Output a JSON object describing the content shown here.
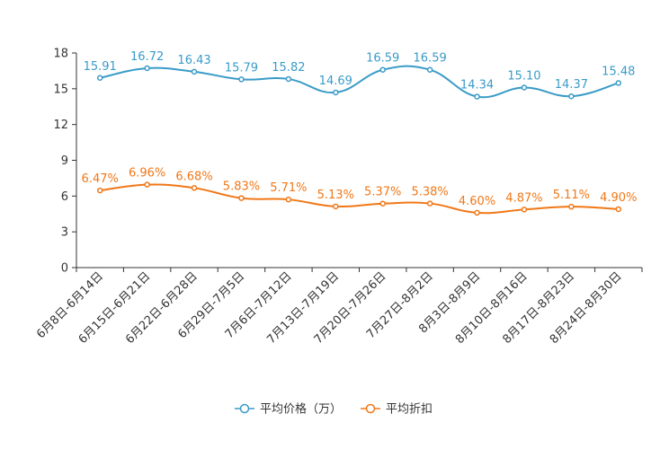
{
  "chart_data": {
    "type": "line",
    "title": "",
    "xlabel": "",
    "ylabel": "",
    "ylim": [
      0,
      18
    ],
    "yticks": [
      0,
      3,
      6,
      9,
      12,
      15,
      18
    ],
    "grid": false,
    "legend_position": "bottom",
    "categories": [
      "6月8日-6月14日",
      "6月15日-6月21日",
      "6月22日-6月28日",
      "6月29日-7月5日",
      "7月6日-7月12日",
      "7月13日-7月19日",
      "7月20日-7月26日",
      "7月27日-8月2日",
      "8月3日-8月9日",
      "8月10日-8月16日",
      "8月17日-8月23日",
      "8月24日-8月30日"
    ],
    "series": [
      {
        "name": "平均价格（万）",
        "color": "#3a9bc8",
        "values": [
          15.91,
          16.72,
          16.43,
          15.79,
          15.82,
          14.69,
          16.59,
          16.59,
          14.34,
          15.1,
          14.37,
          15.48
        ],
        "labels": [
          "15.91",
          "16.72",
          "16.43",
          "15.79",
          "15.82",
          "14.69",
          "16.59",
          "16.59",
          "14.34",
          "15.10",
          "14.37",
          "15.48"
        ]
      },
      {
        "name": "平均折扣",
        "color": "#f07818",
        "values": [
          6.47,
          6.96,
          6.68,
          5.83,
          5.71,
          5.13,
          5.37,
          5.38,
          4.6,
          4.87,
          5.11,
          4.9
        ],
        "labels": [
          "6.47%",
          "6.96%",
          "6.68%",
          "5.83%",
          "5.71%",
          "5.13%",
          "5.37%",
          "5.38%",
          "4.60%",
          "4.87%",
          "5.11%",
          "4.90%"
        ]
      }
    ]
  }
}
